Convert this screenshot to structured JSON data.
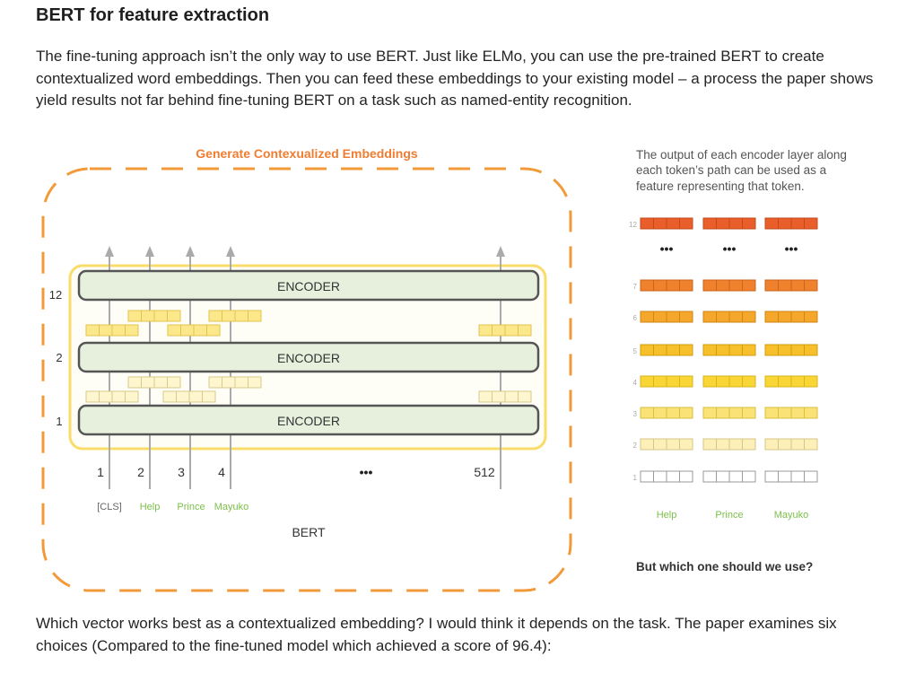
{
  "heading": "BERT for feature extraction",
  "paragraph_intro": "The fine-tuning approach isn’t the only way to use BERT. Just like ELMo, you can use the pre-trained BERT to create contextualized word embeddings. Then you can feed these embeddings to your existing model – a process the paper shows yield results not far behind fine-tuning BERT on a task such as named-entity recognition.",
  "paragraph_followup": "Which vector works best as a contextualized embedding? I would think it depends on the task. The paper examines six choices (Compared to the fine-tuned model which achieved a score of 96.4):",
  "figure": {
    "left_panel": {
      "title": "Generate Contexualized Embeddings",
      "encoder_label": "ENCODER",
      "layer_labels": {
        "top": "12",
        "middle": "2",
        "bottom": "1"
      },
      "position_labels": [
        "1",
        "2",
        "3",
        "4",
        "512"
      ],
      "ellipsis": "•••",
      "token_labels": [
        "[CLS]",
        "Help",
        "Prince",
        "Mayuko"
      ],
      "model_label": "BERT"
    },
    "right_panel": {
      "caption_lines": [
        "The output of each encoder layer along",
        "each token’s path can be used as a",
        "feature representing that token."
      ],
      "layer_numbers": [
        "12",
        "7",
        "6",
        "5",
        "4",
        "3",
        "2",
        "1"
      ],
      "ellipsis": "•••",
      "token_labels": [
        "Help",
        "Prince",
        "Mayuko"
      ],
      "question": "But which one should we use?"
    },
    "colors": {
      "accent_orange": "#f29a3a",
      "title_orange": "#ef7d32",
      "token_green": "#7cc04a",
      "encoder_fill": "#e6f0dd",
      "bert_outline": "#f9dc6a"
    }
  }
}
